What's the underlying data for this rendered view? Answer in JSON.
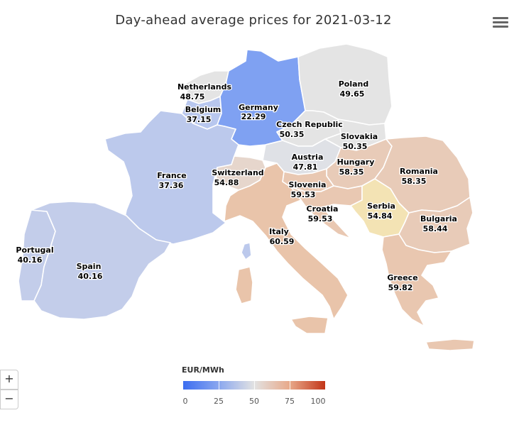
{
  "title": "Day-ahead average prices for 2021-03-12",
  "menu_icon": "hamburger-menu-icon",
  "zoom": {
    "in_label": "+",
    "out_label": "−"
  },
  "legend": {
    "title": "EUR/MWh",
    "ticks": [
      "0",
      "25",
      "50",
      "75",
      "100"
    ],
    "colors": {
      "low": "#3c6df0",
      "mid": "#e2e2e2",
      "high": "#c23518"
    }
  },
  "countries": [
    {
      "key": "germany",
      "name": "Germany",
      "price": "22.29",
      "color": "#7fa1f2"
    },
    {
      "key": "netherlands",
      "name": "Netherlands",
      "price": "48.75",
      "color": "#e4e4e4"
    },
    {
      "key": "belgium",
      "name": "Belgium",
      "price": "37.15",
      "color": "#b8c7ee"
    },
    {
      "key": "poland",
      "name": "Poland",
      "price": "49.65",
      "color": "#e4e4e4"
    },
    {
      "key": "czech",
      "name": "Czech Republic",
      "price": "50.35",
      "color": "#e4e4e4"
    },
    {
      "key": "slovakia",
      "name": "Slovakia",
      "price": "50.35",
      "color": "#e4e4e4"
    },
    {
      "key": "austria",
      "name": "Austria",
      "price": "47.81",
      "color": "#dfe1e6"
    },
    {
      "key": "hungary",
      "name": "Hungary",
      "price": "58.35",
      "color": "#e8cbb8"
    },
    {
      "key": "romania",
      "name": "Romania",
      "price": "58.35",
      "color": "#e8cbb8"
    },
    {
      "key": "france",
      "name": "France",
      "price": "37.36",
      "color": "#bcc9ec"
    },
    {
      "key": "switzerland",
      "name": "Switzerland",
      "price": "54.88",
      "color": "#e6d6cc"
    },
    {
      "key": "slovenia",
      "name": "Slovenia",
      "price": "59.53",
      "color": "#e9c8b2"
    },
    {
      "key": "croatia",
      "name": "Croatia",
      "price": "59.53",
      "color": "#e9c8b2"
    },
    {
      "key": "serbia",
      "name": "Serbia",
      "price": "54.84",
      "color": "#f3e3b4"
    },
    {
      "key": "bulgaria",
      "name": "Bulgaria",
      "price": "58.44",
      "color": "#e8cbb8"
    },
    {
      "key": "italy",
      "name": "Italy",
      "price": "60.59",
      "color": "#e9c4aa"
    },
    {
      "key": "portugal",
      "name": "Portugal",
      "price": "40.16",
      "color": "#c3cdea"
    },
    {
      "key": "spain",
      "name": "Spain",
      "price": "40.16",
      "color": "#c3cdea"
    },
    {
      "key": "greece",
      "name": "Greece",
      "price": "59.82",
      "color": "#e9c7b0"
    }
  ]
}
